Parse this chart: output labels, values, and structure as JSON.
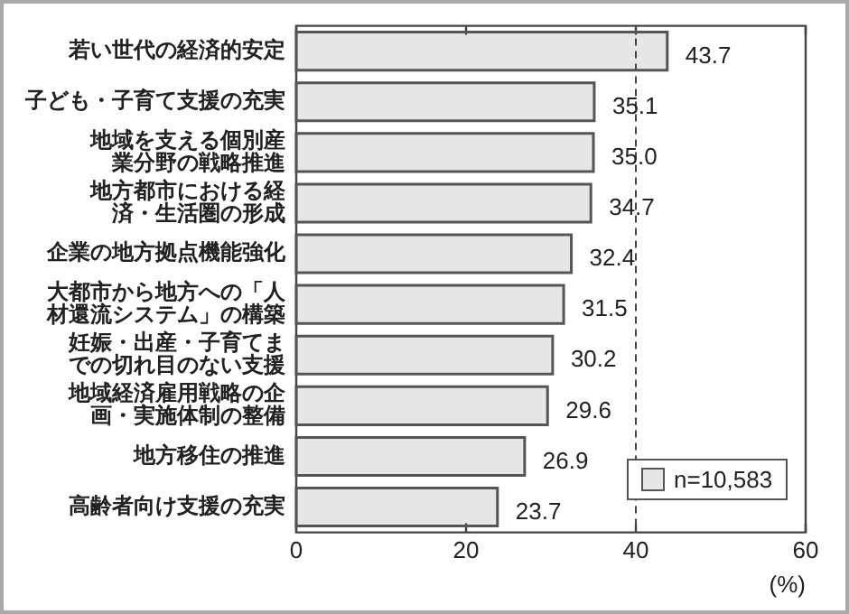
{
  "chart_data": {
    "type": "bar",
    "orientation": "horizontal",
    "xlabel": "(%)",
    "categories": [
      "若い世代の経済的安定",
      "子ども・子育て支援の充実",
      "地域を支える個別産業分野の戦略推進",
      "地方都市における経済・生活圏の形成",
      "企業の地方拠点機能強化",
      "大都市から地方への「人材還流システム」の構築",
      "妊娠・出産・子育てまでの切れ目のない支援",
      "地域経済雇用戦略の企画・実施体制の整備",
      "地方移住の推進",
      "高齢者向け支援の充実"
    ],
    "series": [
      {
        "name": "n=10,583",
        "color": "#e6e6e6",
        "values": [
          43.7,
          35.1,
          35.0,
          34.7,
          32.4,
          31.5,
          30.2,
          29.6,
          26.9,
          23.7
        ],
        "value_labels": [
          "43.7",
          "35.1",
          "35.0",
          "34.7",
          "32.4",
          "31.5",
          "30.2",
          "29.6",
          "26.9",
          "23.7"
        ]
      }
    ],
    "xlim": [
      0,
      60
    ],
    "xticks": [
      0,
      20,
      40,
      60
    ],
    "ref_lines": [
      {
        "axis": "x",
        "value": 40,
        "line_style": "dashed"
      }
    ],
    "legend": "bottom right"
  }
}
